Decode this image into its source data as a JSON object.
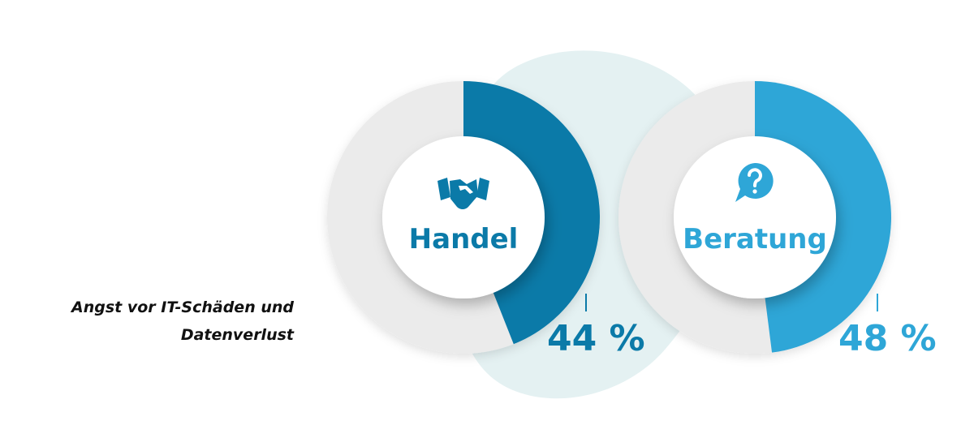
{
  "caption": "Angst vor IT-Schäden und Datenverlust",
  "chart_data": [
    {
      "type": "donut",
      "title": "Handel",
      "values": [
        44
      ],
      "value_labels": [
        "44 %"
      ],
      "color": "#0b7aa8",
      "ylim": [
        0,
        100
      ]
    },
    {
      "type": "donut",
      "title": "Beratung",
      "values": [
        48
      ],
      "value_labels": [
        "48 %"
      ],
      "color": "#2ea6d7",
      "ylim": [
        0,
        100
      ]
    }
  ]
}
